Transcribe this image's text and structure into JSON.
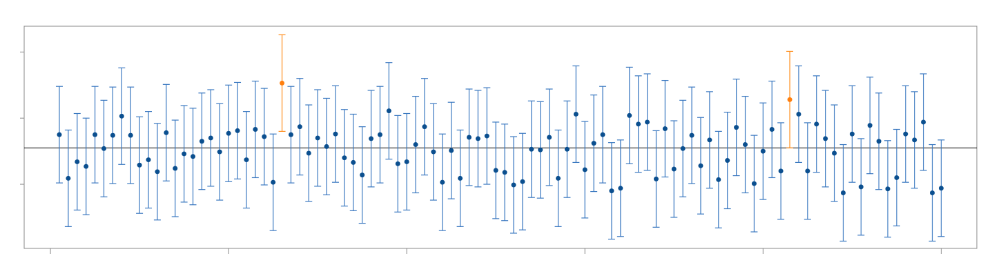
{
  "chart_data": {
    "type": "errorbar",
    "xlim": [
      -2.95,
      104
    ],
    "ylim": [
      -1.97,
      1.39
    ],
    "xticks": [
      0,
      20,
      40,
      60,
      80,
      100
    ],
    "yticks": [
      -1,
      0,
      1
    ],
    "hline": -0.45,
    "hline_color": "#000000",
    "series": [
      {
        "color": "#0b4f8f",
        "bar_color": "#3a78c0",
        "x": [
          1,
          2,
          3,
          4,
          5,
          6,
          7,
          8,
          9,
          10,
          11,
          12,
          13,
          14,
          15,
          16,
          17,
          18,
          19,
          20,
          21,
          22,
          23,
          24,
          25,
          27,
          28,
          29,
          30,
          31,
          32,
          33,
          34,
          35,
          36,
          37,
          38,
          39,
          40,
          41,
          42,
          43,
          44,
          45,
          46,
          47,
          48,
          49,
          50,
          51,
          52,
          53,
          54,
          55,
          56,
          57,
          58,
          59,
          60,
          61,
          62,
          63,
          64,
          65,
          66,
          67,
          68,
          69,
          70,
          71,
          72,
          73,
          74,
          75,
          76,
          77,
          78,
          79,
          80,
          81,
          82,
          84,
          85,
          86,
          87,
          88,
          89,
          90,
          91,
          92,
          93,
          94,
          95,
          96,
          97,
          98,
          99,
          100
        ],
        "values": [
          -0.25,
          -0.91,
          -0.66,
          -0.73,
          -0.25,
          -0.46,
          -0.26,
          0.03,
          -0.26,
          -0.71,
          -0.63,
          -0.81,
          -0.22,
          -0.76,
          -0.54,
          -0.58,
          -0.35,
          -0.3,
          -0.51,
          -0.23,
          -0.19,
          -0.63,
          -0.17,
          -0.28,
          -0.97,
          -0.25,
          -0.13,
          -0.53,
          -0.3,
          -0.43,
          -0.24,
          -0.6,
          -0.67,
          -0.86,
          -0.31,
          -0.25,
          0.11,
          -0.69,
          -0.66,
          -0.4,
          -0.13,
          -0.51,
          -0.97,
          -0.49,
          -0.91,
          -0.29,
          -0.31,
          -0.27,
          -0.79,
          -0.82,
          -1.01,
          -0.96,
          -0.47,
          -0.48,
          -0.29,
          -0.91,
          -0.47,
          0.06,
          -0.78,
          -0.38,
          -0.25,
          -1.1,
          -1.06,
          0.04,
          -0.09,
          -0.06,
          -0.92,
          -0.16,
          -0.77,
          -0.46,
          -0.26,
          -0.72,
          -0.33,
          -0.93,
          -0.64,
          -0.14,
          -0.4,
          -0.99,
          -0.5,
          -0.17,
          -0.8,
          0.06,
          -0.8,
          -0.09,
          -0.31,
          -0.53,
          -1.13,
          -0.24,
          -1.04,
          -0.11,
          -0.35,
          -1.07,
          -0.9,
          -0.24,
          -0.33,
          -0.06,
          -1.13,
          -1.06
        ],
        "errors": [
          0.73,
          0.73,
          0.73,
          0.73,
          0.73,
          0.73,
          0.73,
          0.73,
          0.73,
          0.73,
          0.73,
          0.73,
          0.73,
          0.73,
          0.73,
          0.73,
          0.73,
          0.73,
          0.73,
          0.73,
          0.73,
          0.73,
          0.73,
          0.73,
          0.73,
          0.73,
          0.73,
          0.73,
          0.73,
          0.73,
          0.73,
          0.73,
          0.73,
          0.73,
          0.73,
          0.73,
          0.73,
          0.73,
          0.73,
          0.73,
          0.73,
          0.73,
          0.73,
          0.73,
          0.73,
          0.73,
          0.73,
          0.73,
          0.73,
          0.73,
          0.73,
          0.73,
          0.73,
          0.73,
          0.73,
          0.73,
          0.73,
          0.73,
          0.73,
          0.73,
          0.73,
          0.73,
          0.73,
          0.73,
          0.73,
          0.73,
          0.73,
          0.73,
          0.73,
          0.73,
          0.73,
          0.73,
          0.73,
          0.73,
          0.73,
          0.73,
          0.73,
          0.73,
          0.73,
          0.73,
          0.73,
          0.73,
          0.73,
          0.73,
          0.73,
          0.73,
          0.73,
          0.73,
          0.73,
          0.73,
          0.73,
          0.73,
          0.73,
          0.73,
          0.73,
          0.73,
          0.73,
          0.73
        ]
      },
      {
        "color": "#ff7f0e",
        "bar_color": "#ff8c1a",
        "x": [
          26,
          83
        ],
        "values": [
          0.53,
          0.28
        ],
        "errors": [
          0.73,
          0.73
        ]
      }
    ]
  }
}
